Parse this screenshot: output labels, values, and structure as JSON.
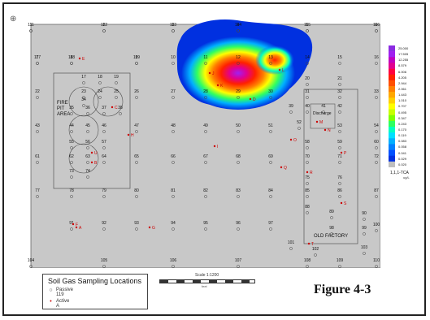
{
  "figure_label": "Figure 4-3",
  "legend": {
    "title": "Soil Gas Sampling Locations",
    "passive_label": "Passive",
    "passive_id": "119",
    "active_label": "Active",
    "active_id": "A"
  },
  "scale": {
    "label": "Scale 1:1200",
    "unit": "feet"
  },
  "areas": [
    {
      "id": "fire-pit",
      "label": "FIRE\nPIT\nAREA"
    },
    {
      "id": "old-factory",
      "label": "OLD FACTORY"
    },
    {
      "id": "discharge",
      "label": "Discharge"
    }
  ],
  "colorbar": {
    "title": "1,1,1-TCA",
    "unit": "ug/L",
    "levels": [
      "25.000",
      "17.505",
      "12.255",
      "8.579",
      "6.006",
      "4.205",
      "2.944",
      "2.061",
      "1.443",
      "1.010",
      "0.707",
      "0.495",
      "0.347",
      "0.243",
      "0.170",
      "0.119",
      "0.083",
      "0.058",
      "0.041",
      "0.029",
      "0.020"
    ],
    "colors": [
      "#8b2be2",
      "#a020f0",
      "#c000c0",
      "#e00090",
      "#ff0040",
      "#ff2000",
      "#ff5000",
      "#ff8000",
      "#ffa800",
      "#ffd000",
      "#ffff00",
      "#c8ff00",
      "#80ff00",
      "#30ff60",
      "#00ffc0",
      "#00e0ff",
      "#00b0ff",
      "#0080ff",
      "#0050ff",
      "#0030e0",
      "#bfbfbf"
    ]
  },
  "grid_labels": [
    "1",
    "2",
    "3",
    "4",
    "5",
    "6",
    "7",
    "8",
    "9",
    "10",
    "11",
    "12",
    "13",
    "14",
    "15",
    "16",
    "17",
    "18",
    "19",
    "20",
    "21",
    "22",
    "23",
    "24",
    "25",
    "26",
    "27",
    "28",
    "29",
    "30",
    "31",
    "32",
    "33",
    "34",
    "35",
    "36",
    "37",
    "38",
    "39",
    "40",
    "41",
    "42",
    "43",
    "44",
    "45",
    "46",
    "47",
    "48",
    "49",
    "50",
    "51",
    "52",
    "53",
    "54",
    "55",
    "56",
    "57",
    "58",
    "59",
    "60",
    "61",
    "62",
    "63",
    "64",
    "65",
    "66",
    "67",
    "68",
    "69",
    "70",
    "71",
    "72",
    "73",
    "74",
    "75",
    "76",
    "77",
    "78",
    "79",
    "80",
    "81",
    "82",
    "83",
    "84",
    "85",
    "86",
    "87",
    "88",
    "89",
    "90",
    "91",
    "92",
    "93",
    "94",
    "95",
    "96",
    "97",
    "98",
    "99",
    "100",
    "101",
    "102",
    "103",
    "104",
    "105",
    "106",
    "107",
    "108",
    "109",
    "110",
    "111",
    "112",
    "113",
    "114",
    "115",
    "116",
    "117",
    "118",
    "119"
  ],
  "active_labels": [
    "E",
    "H",
    "I",
    "L",
    "M",
    "N",
    "O",
    "P",
    "Q",
    "R",
    "S",
    "T",
    "U",
    "C",
    "G",
    "F",
    "B",
    "A",
    "J",
    "K",
    "D"
  ]
}
